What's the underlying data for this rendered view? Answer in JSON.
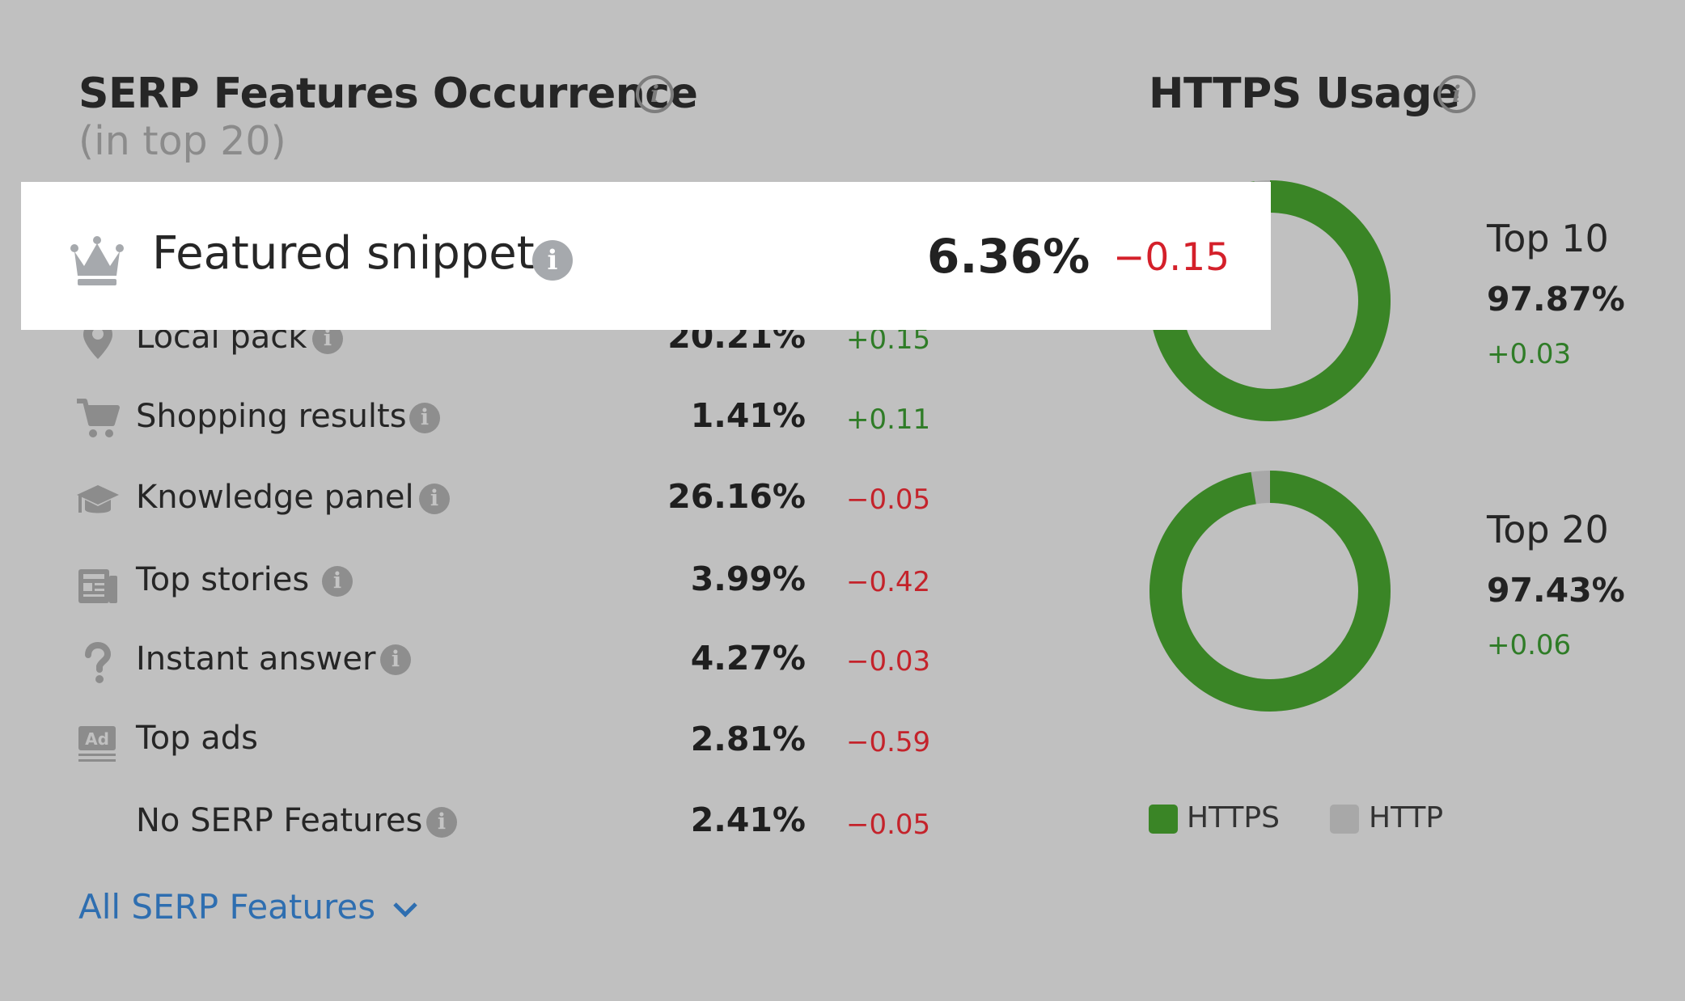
{
  "serp": {
    "title": "SERP Features Occurrence",
    "subtitle": "(in top 20)",
    "info_glyph": "i",
    "highlight": {
      "icon": "crown-icon",
      "label": "Featured snippet",
      "value": "6.36%",
      "delta": "−0.15"
    },
    "rows": [
      {
        "icon": "map-pin-icon",
        "label": "Local pack",
        "value": "20.21%",
        "delta": "+0.15",
        "trend": "up"
      },
      {
        "icon": "shopping-cart-icon",
        "label": "Shopping results",
        "value": "1.41%",
        "delta": "+0.11",
        "trend": "up"
      },
      {
        "icon": "graduation-cap-icon",
        "label": "Knowledge panel",
        "value": "26.16%",
        "delta": "−0.05",
        "trend": "down"
      },
      {
        "icon": "newspaper-icon",
        "label": "Top stories",
        "value": "3.99%",
        "delta": "−0.42",
        "trend": "down"
      },
      {
        "icon": "question-mark-icon",
        "label": "Instant answer",
        "value": "4.27%",
        "delta": "−0.03",
        "trend": "down"
      },
      {
        "icon": "ad-icon",
        "label": "Top ads",
        "value": "2.81%",
        "delta": "−0.59",
        "trend": "down"
      },
      {
        "icon": "",
        "label": "No SERP Features",
        "value": "2.41%",
        "delta": "−0.05",
        "trend": "down"
      }
    ],
    "link": "All SERP Features"
  },
  "https": {
    "title": "HTTPS Usage",
    "donuts": [
      {
        "label": "Top 10",
        "value": "97.87%",
        "delta": "+0.03",
        "https_fraction": 0.9787
      },
      {
        "label": "Top 20",
        "value": "97.43%",
        "delta": "+0.06",
        "https_fraction": 0.9743
      }
    ],
    "legend": [
      {
        "label": "HTTPS",
        "color": "#3a8526"
      },
      {
        "label": "HTTP",
        "color": "#a8a8a8"
      }
    ]
  },
  "colors": {
    "https": "#3a8526",
    "http": "#a8a8a8",
    "positive": "#2f7c27",
    "negative": "#c4232b",
    "link": "#2e6eb0"
  }
}
